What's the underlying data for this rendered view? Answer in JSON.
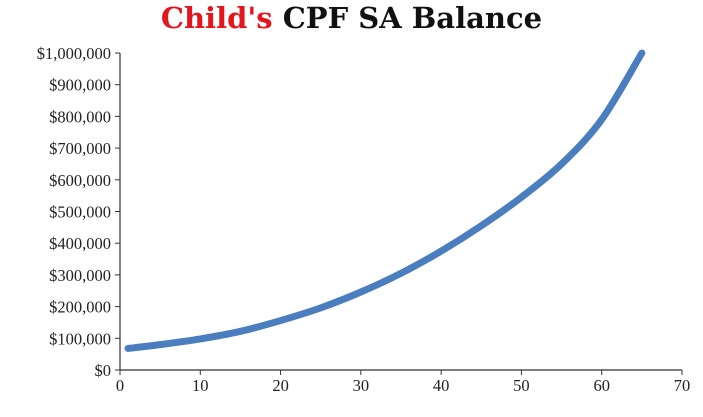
{
  "chart_data": {
    "type": "line",
    "title_parts": [
      {
        "text": "Child's",
        "color": "#e3161d"
      },
      {
        "text": "CPF SA Balance",
        "color": "#111111"
      }
    ],
    "xlabel": "",
    "ylabel": "",
    "xlim": [
      0,
      70
    ],
    "ylim": [
      0,
      1000000
    ],
    "x_ticks": [
      0,
      10,
      20,
      30,
      40,
      50,
      60,
      70
    ],
    "y_ticks": [
      0,
      100000,
      200000,
      300000,
      400000,
      500000,
      600000,
      700000,
      800000,
      900000,
      1000000
    ],
    "y_tick_labels": [
      "$0",
      "$100,000",
      "$200,000",
      "$300,000",
      "$400,000",
      "$500,000",
      "$600,000",
      "$700,000",
      "$800,000",
      "$900,000",
      "$1,000,000"
    ],
    "grid": false,
    "series": [
      {
        "color": "#4a7ebf",
        "points": [
          [
            1,
            68000
          ],
          [
            5,
            80000
          ],
          [
            10,
            98000
          ],
          [
            15,
            122000
          ],
          [
            20,
            156000
          ],
          [
            25,
            196000
          ],
          [
            30,
            246000
          ],
          [
            35,
            305000
          ],
          [
            40,
            375000
          ],
          [
            45,
            455000
          ],
          [
            50,
            545000
          ],
          [
            55,
            650000
          ],
          [
            60,
            790000
          ],
          [
            65,
            1000000
          ]
        ]
      }
    ]
  }
}
